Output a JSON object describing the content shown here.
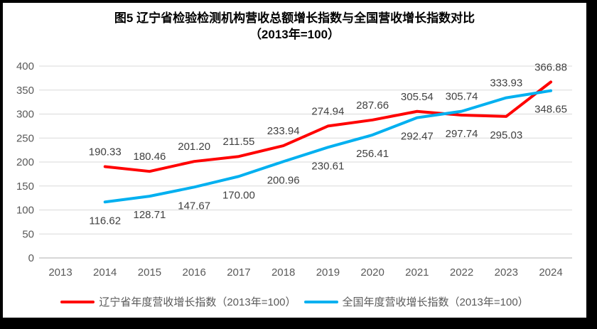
{
  "title": {
    "line1": "图5  辽宁省检验检测机构营收总额增长指数与全国营收增长指数对比",
    "line2": "（2013年=100）"
  },
  "chart_data": {
    "type": "line",
    "x": [
      "2013",
      "2014",
      "2015",
      "2016",
      "2017",
      "2018",
      "2019",
      "2020",
      "2021",
      "2022",
      "2023",
      "2024"
    ],
    "series": [
      {
        "key": "liaoning",
        "name": "辽宁省年度营收增长指数（2013年=100）",
        "color": "#FF0000",
        "values": [
          null,
          190.33,
          180.46,
          201.2,
          211.55,
          233.94,
          274.94,
          287.66,
          305.54,
          297.74,
          295.03,
          366.88
        ],
        "label_positions": [
          null,
          "above",
          "above",
          "above",
          "above",
          "above",
          "above",
          "above",
          "above",
          "below",
          "below",
          "above"
        ]
      },
      {
        "key": "national",
        "name": "全国年度营收增长指数（2013年=100）",
        "color": "#00B0F0",
        "values": [
          null,
          116.62,
          128.71,
          147.67,
          170.0,
          200.96,
          230.61,
          256.41,
          292.47,
          305.74,
          333.93,
          348.65
        ],
        "label_positions": [
          null,
          "below",
          "below",
          "below",
          "below",
          "below",
          "below",
          "below",
          "below",
          "above",
          "above",
          "below"
        ]
      }
    ],
    "ylim": [
      0,
      400
    ],
    "yticks": [
      0,
      50,
      100,
      150,
      200,
      250,
      300,
      350,
      400
    ],
    "grid": true,
    "legend_position": "bottom",
    "data_label_decimals": 2,
    "colors": {
      "grid": "#D9D9D9",
      "axis": "#BFBFBF",
      "tick_label": "#595959",
      "data_label": "#404040"
    }
  }
}
